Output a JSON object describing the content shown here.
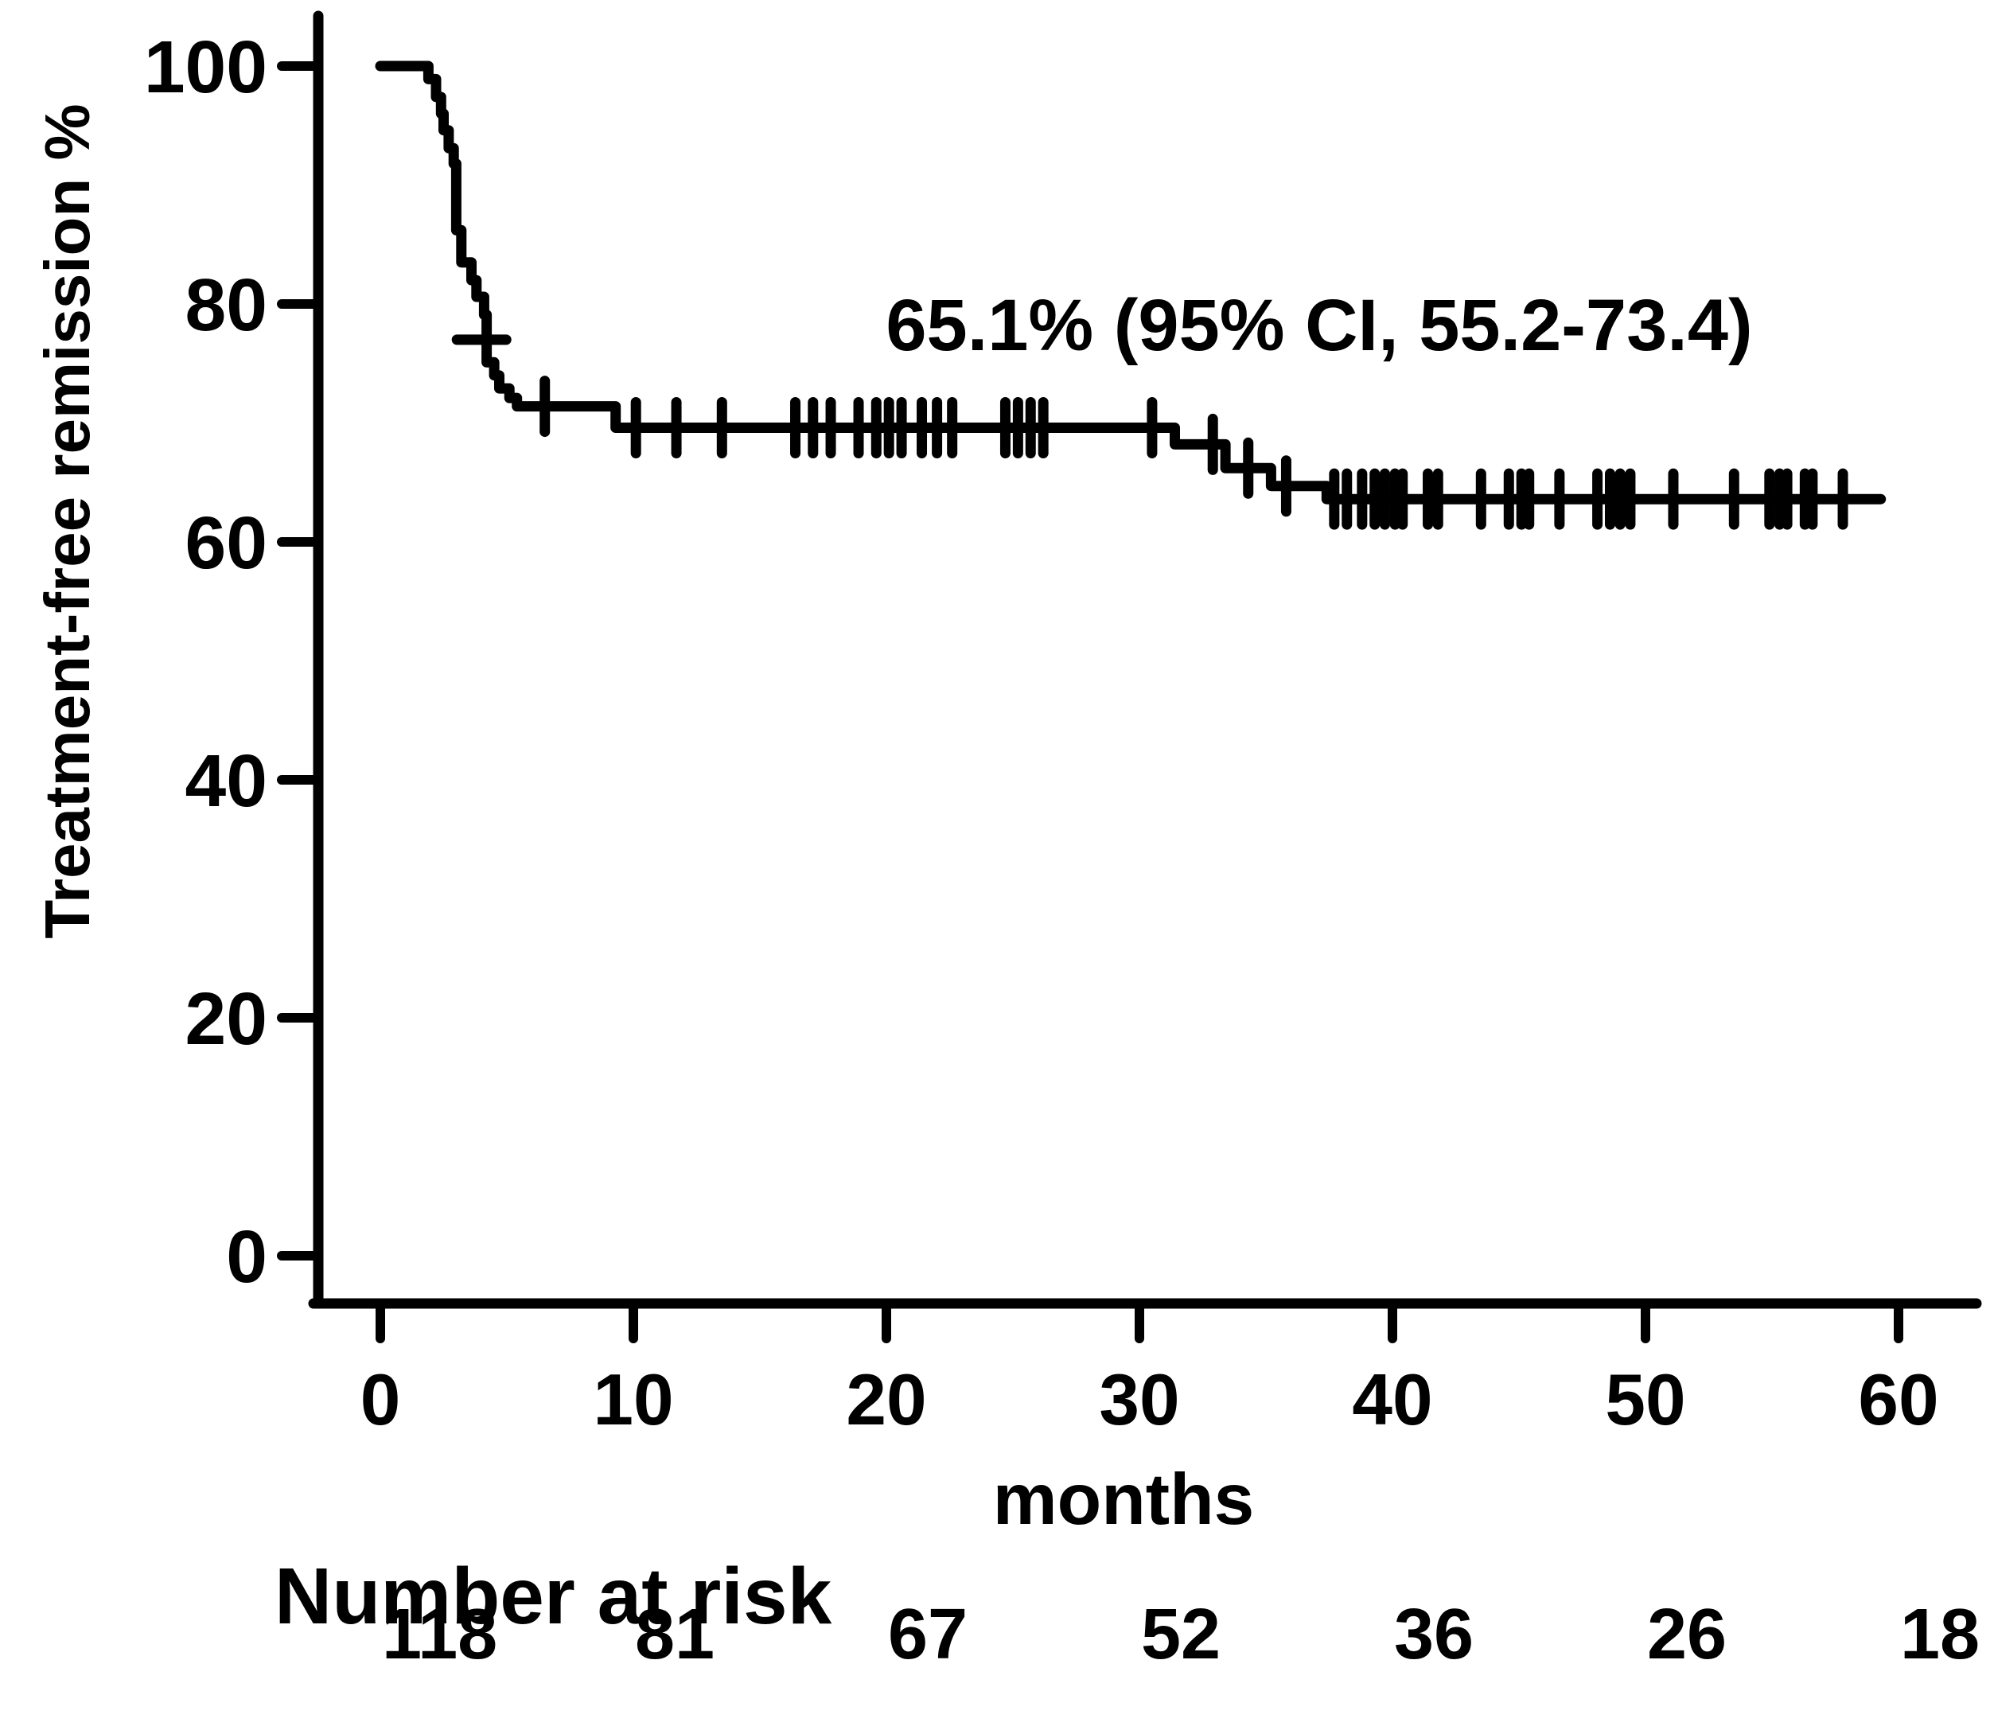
{
  "figure": {
    "background": "#ffffff",
    "ink": "#000000"
  },
  "annotation": {
    "text": "65.1% (95% CI, 55.2-73.4)"
  },
  "axes": {
    "y_label": "Treatment-free remission %",
    "x_label": "months",
    "y_ticks": [
      100,
      80,
      60,
      40,
      20,
      0
    ],
    "x_ticks": [
      0,
      10,
      20,
      30,
      40,
      50,
      60
    ]
  },
  "risk_table": {
    "title": "Number at risk",
    "values": [
      "118",
      "81",
      "67",
      "52",
      "36",
      "26",
      "18"
    ]
  },
  "chart_data": {
    "type": "line",
    "subtype": "kaplan-meier-step",
    "title": "",
    "xlabel": "months",
    "ylabel": "Treatment-free remission %",
    "xlim": [
      0,
      63
    ],
    "ylim": [
      0,
      100
    ],
    "grid": false,
    "legend": "none",
    "annotation": "65.1% (95% CI, 55.2-73.4)",
    "series": [
      {
        "name": "treatment-free-remission",
        "steps": [
          [
            0,
            100
          ],
          [
            1.9,
            98.9
          ],
          [
            2.2,
            97.4
          ],
          [
            2.4,
            96.0
          ],
          [
            2.5,
            94.6
          ],
          [
            2.7,
            93.1
          ],
          [
            2.9,
            91.8
          ],
          [
            3.0,
            86.2
          ],
          [
            3.2,
            83.5
          ],
          [
            3.6,
            82.0
          ],
          [
            3.8,
            80.6
          ],
          [
            4.1,
            79.1
          ],
          [
            4.2,
            75.1
          ],
          [
            4.5,
            74.0
          ],
          [
            4.7,
            72.9
          ],
          [
            5.1,
            72.1
          ],
          [
            5.4,
            71.4
          ],
          [
            9.3,
            69.6
          ],
          [
            31.4,
            68.2
          ],
          [
            33.4,
            66.2
          ],
          [
            35.2,
            64.7
          ],
          [
            37.4,
            63.6
          ],
          [
            59.3,
            63.6
          ]
        ]
      }
    ],
    "censor_marks": [
      {
        "t": 4.0,
        "p": 77.0,
        "o": "h"
      },
      {
        "t": 6.5,
        "p": 71.4,
        "o": "v"
      },
      {
        "t": 10.1,
        "p": 69.6,
        "o": "v"
      },
      {
        "t": 11.7,
        "p": 69.6,
        "o": "v"
      },
      {
        "t": 13.5,
        "p": 69.6,
        "o": "v"
      },
      {
        "t": 16.4,
        "p": 69.6,
        "o": "v"
      },
      {
        "t": 17.1,
        "p": 69.6,
        "o": "v"
      },
      {
        "t": 17.8,
        "p": 69.6,
        "o": "v"
      },
      {
        "t": 18.9,
        "p": 69.6,
        "o": "v"
      },
      {
        "t": 19.6,
        "p": 69.6,
        "o": "v"
      },
      {
        "t": 20.1,
        "p": 69.6,
        "o": "v"
      },
      {
        "t": 20.6,
        "p": 69.6,
        "o": "v"
      },
      {
        "t": 21.4,
        "p": 69.6,
        "o": "v"
      },
      {
        "t": 22.0,
        "p": 69.6,
        "o": "v"
      },
      {
        "t": 22.6,
        "p": 69.6,
        "o": "v"
      },
      {
        "t": 24.7,
        "p": 69.6,
        "o": "v"
      },
      {
        "t": 25.2,
        "p": 69.6,
        "o": "v"
      },
      {
        "t": 25.7,
        "p": 69.6,
        "o": "v"
      },
      {
        "t": 26.2,
        "p": 69.6,
        "o": "v"
      },
      {
        "t": 30.5,
        "p": 69.6,
        "o": "v"
      },
      {
        "t": 32.9,
        "p": 68.2,
        "o": "v"
      },
      {
        "t": 34.3,
        "p": 66.2,
        "o": "v"
      },
      {
        "t": 35.8,
        "p": 64.7,
        "o": "v"
      },
      {
        "t": 37.7,
        "p": 63.6,
        "o": "v"
      },
      {
        "t": 38.2,
        "p": 63.6,
        "o": "v"
      },
      {
        "t": 38.8,
        "p": 63.6,
        "o": "v"
      },
      {
        "t": 39.3,
        "p": 63.6,
        "o": "v"
      },
      {
        "t": 39.7,
        "p": 63.6,
        "o": "v"
      },
      {
        "t": 40.1,
        "p": 63.6,
        "o": "v"
      },
      {
        "t": 40.4,
        "p": 63.6,
        "o": "v"
      },
      {
        "t": 41.4,
        "p": 63.6,
        "o": "v"
      },
      {
        "t": 41.8,
        "p": 63.6,
        "o": "v"
      },
      {
        "t": 43.5,
        "p": 63.6,
        "o": "v"
      },
      {
        "t": 44.6,
        "p": 63.6,
        "o": "v"
      },
      {
        "t": 45.1,
        "p": 63.6,
        "o": "v"
      },
      {
        "t": 45.4,
        "p": 63.6,
        "o": "v"
      },
      {
        "t": 46.6,
        "p": 63.6,
        "o": "v"
      },
      {
        "t": 48.1,
        "p": 63.6,
        "o": "v"
      },
      {
        "t": 48.6,
        "p": 63.6,
        "o": "v"
      },
      {
        "t": 49.0,
        "p": 63.6,
        "o": "v"
      },
      {
        "t": 49.4,
        "p": 63.6,
        "o": "v"
      },
      {
        "t": 51.1,
        "p": 63.6,
        "o": "v"
      },
      {
        "t": 53.5,
        "p": 63.6,
        "o": "v"
      },
      {
        "t": 54.9,
        "p": 63.6,
        "o": "v"
      },
      {
        "t": 55.3,
        "p": 63.6,
        "o": "v"
      },
      {
        "t": 55.6,
        "p": 63.6,
        "o": "v"
      },
      {
        "t": 56.3,
        "p": 63.6,
        "o": "v"
      },
      {
        "t": 56.6,
        "p": 63.6,
        "o": "v"
      },
      {
        "t": 57.8,
        "p": 63.6,
        "o": "v"
      }
    ],
    "number_at_risk": {
      "times": [
        0,
        10,
        20,
        30,
        40,
        50,
        60
      ],
      "values": [
        118,
        81,
        67,
        52,
        36,
        26,
        18
      ]
    }
  }
}
